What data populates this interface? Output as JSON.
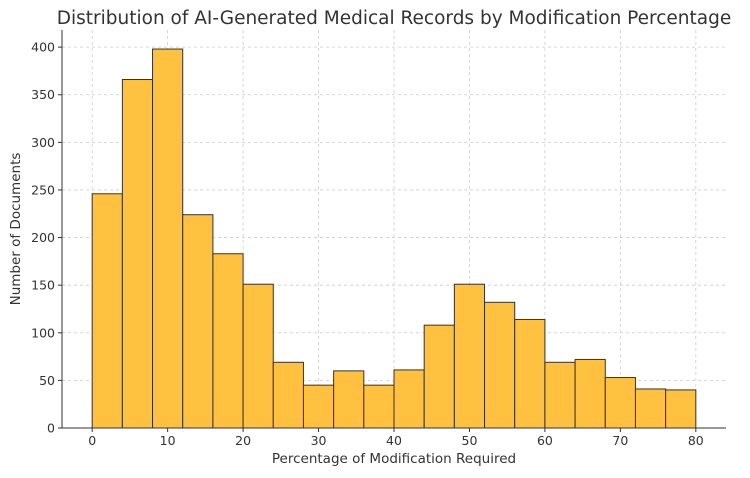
{
  "chart_data": {
    "type": "bar",
    "subtype": "histogram",
    "title": "Distribution of AI-Generated Medical Records by Modification Percentage",
    "xlabel": "Percentage of Modification Required",
    "ylabel": "Number of Documents",
    "bin_edges": [
      0,
      4,
      8,
      12,
      16,
      20,
      24,
      28,
      32,
      36,
      40,
      44,
      48,
      52,
      56,
      60,
      64,
      68,
      72,
      76,
      80
    ],
    "values": [
      246,
      366,
      398,
      224,
      183,
      151,
      69,
      45,
      60,
      45,
      61,
      108,
      151,
      132,
      114,
      69,
      72,
      53,
      41,
      40
    ],
    "xlim": [
      -4,
      84
    ],
    "ylim": [
      0,
      418
    ],
    "xticks": [
      0,
      10,
      20,
      30,
      40,
      50,
      60,
      70,
      80
    ],
    "yticks": [
      0,
      50,
      100,
      150,
      200,
      250,
      300,
      350,
      400
    ],
    "grid": true,
    "bar_color": "#FFC13F",
    "edge_color": "#333333"
  }
}
